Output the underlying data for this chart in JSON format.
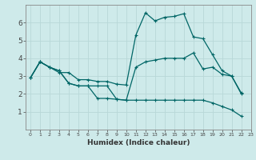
{
  "xlabel": "Humidex (Indice chaleur)",
  "ylabel": "",
  "bg_color": "#ceeaea",
  "line_color": "#006666",
  "grid_color": "#b8d8d8",
  "xlim": [
    -0.5,
    23
  ],
  "ylim": [
    0,
    7
  ],
  "xticks": [
    0,
    1,
    2,
    3,
    4,
    5,
    6,
    7,
    8,
    9,
    10,
    11,
    12,
    13,
    14,
    15,
    16,
    17,
    18,
    19,
    20,
    21,
    22,
    23
  ],
  "yticks": [
    1,
    2,
    3,
    4,
    5,
    6
  ],
  "series": [
    {
      "x": [
        0,
        1,
        2,
        3,
        4,
        5,
        6,
        7,
        8,
        9,
        10,
        11,
        12,
        13,
        14,
        15,
        16,
        17,
        18,
        19,
        20,
        21,
        22
      ],
      "y": [
        2.9,
        3.8,
        3.5,
        3.2,
        3.2,
        2.8,
        2.8,
        2.7,
        2.7,
        2.55,
        2.5,
        5.3,
        6.55,
        6.1,
        6.3,
        6.35,
        6.5,
        5.2,
        5.1,
        4.2,
        3.3,
        3.0,
        2.0
      ]
    },
    {
      "x": [
        0,
        1,
        2,
        3,
        4,
        5,
        6,
        7,
        8,
        9,
        10,
        11,
        12,
        13,
        14,
        15,
        16,
        17,
        18,
        19,
        20,
        21,
        22
      ],
      "y": [
        2.9,
        3.8,
        3.5,
        3.3,
        2.6,
        2.45,
        2.45,
        2.45,
        2.45,
        1.7,
        1.65,
        3.5,
        3.8,
        3.9,
        4.0,
        4.0,
        4.0,
        4.3,
        3.4,
        3.5,
        3.1,
        3.0,
        2.05
      ]
    },
    {
      "x": [
        0,
        1,
        2,
        3,
        4,
        5,
        6,
        7,
        8,
        9,
        10,
        11,
        12,
        13,
        14,
        15,
        16,
        17,
        18,
        19,
        20,
        21,
        22
      ],
      "y": [
        2.9,
        3.8,
        3.5,
        3.3,
        2.6,
        2.45,
        2.45,
        1.75,
        1.75,
        1.7,
        1.65,
        1.65,
        1.65,
        1.65,
        1.65,
        1.65,
        1.65,
        1.65,
        1.65,
        1.5,
        1.3,
        1.1,
        0.75
      ]
    }
  ]
}
